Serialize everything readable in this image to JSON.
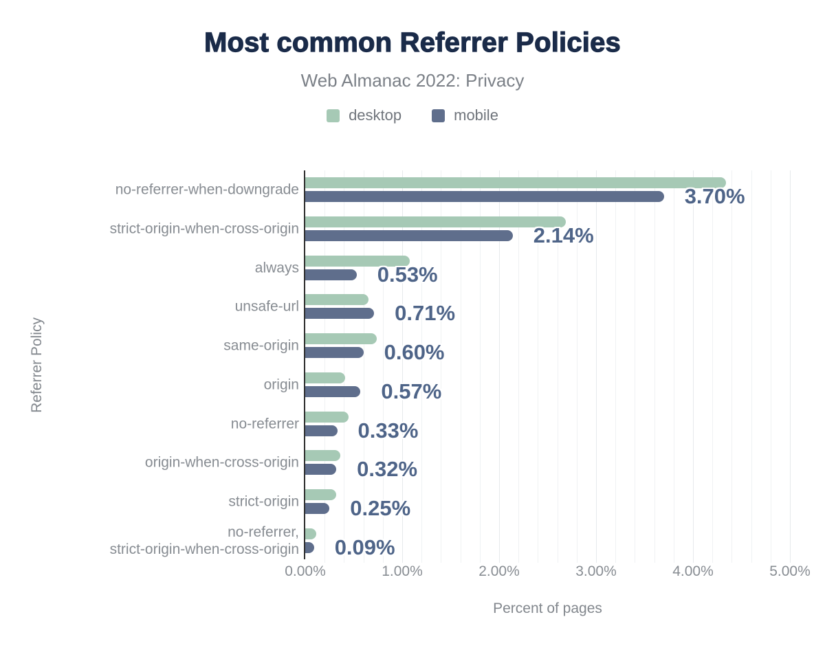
{
  "header": {
    "title": "Most common Referrer Policies",
    "subtitle": "Web Almanac 2022: Privacy"
  },
  "legend": {
    "items": [
      {
        "label": "desktop",
        "color": "#a6c9b5"
      },
      {
        "label": "mobile",
        "color": "#5f6e8c"
      }
    ]
  },
  "chart_data": {
    "type": "bar",
    "orientation": "horizontal",
    "title": "Most common Referrer Policies",
    "subtitle": "Web Almanac 2022: Privacy",
    "xlabel": "Percent of pages",
    "ylabel": "Referrer Policy",
    "xlim": [
      0,
      5
    ],
    "x_tick_labels": [
      "0.00%",
      "1.00%",
      "2.00%",
      "3.00%",
      "4.00%",
      "5.00%"
    ],
    "grid": {
      "minor_step": 0.2,
      "major_step": 1.0
    },
    "legend_position": "top",
    "categories": [
      "no-referrer-when-downgrade",
      "strict-origin-when-cross-origin",
      "always",
      "unsafe-url",
      "same-origin",
      "origin",
      "no-referrer",
      "origin-when-cross-origin",
      "strict-origin",
      "no-referrer,\nstrict-origin-when-cross-origin"
    ],
    "series": [
      {
        "name": "desktop",
        "color": "#a6c9b5",
        "values": [
          4.34,
          2.69,
          1.08,
          0.65,
          0.74,
          0.41,
          0.45,
          0.36,
          0.32,
          0.11
        ]
      },
      {
        "name": "mobile",
        "color": "#5f6e8c",
        "values": [
          3.7,
          2.14,
          0.53,
          0.71,
          0.6,
          0.57,
          0.33,
          0.32,
          0.25,
          0.09
        ]
      }
    ],
    "data_labels": {
      "series": "mobile",
      "color": "#4e6488",
      "values": [
        "3.70%",
        "2.14%",
        "0.53%",
        "0.71%",
        "0.60%",
        "0.57%",
        "0.33%",
        "0.32%",
        "0.25%",
        "0.09%"
      ]
    }
  },
  "colors": {
    "background": "#ffffff",
    "title": "#1a2b49",
    "subtitle": "#7b8087",
    "axis_text": "#878c92",
    "axis_line": "#2d2d2d",
    "gridline_minor": "#eff1f3",
    "gridline_major": "#e6e9ec",
    "desktop": "#a6c9b5",
    "mobile": "#5f6e8c",
    "value_label": "#4e6488"
  }
}
